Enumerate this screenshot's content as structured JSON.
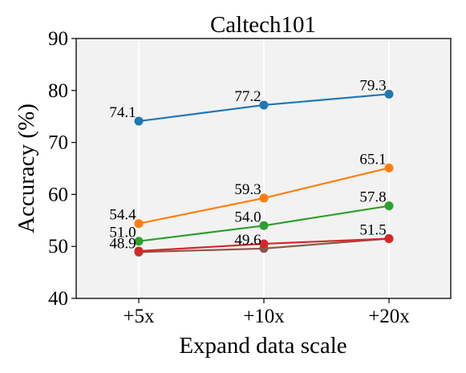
{
  "chart_data": {
    "type": "line",
    "title": "Caltech101",
    "xlabel": "Expand data scale",
    "ylabel": "Accuracy (%)",
    "categories": [
      "+5x",
      "+10x",
      "+20x"
    ],
    "ylim": [
      40,
      90
    ],
    "yticks": [
      40,
      50,
      60,
      70,
      80,
      90
    ],
    "grid": "vertical",
    "background": "#f2f2f2",
    "series": [
      {
        "color": "#1f77b4",
        "values": [
          74.1,
          77.2,
          79.3
        ],
        "labels": [
          "74.1",
          "77.2",
          "79.3"
        ]
      },
      {
        "color": "#ff7f0e",
        "values": [
          54.4,
          59.3,
          65.1
        ],
        "labels": [
          "54.4",
          "59.3",
          "65.1"
        ]
      },
      {
        "color": "#2ca02c",
        "values": [
          51.0,
          54.0,
          57.8
        ],
        "labels": [
          "51.0",
          "54.0",
          "57.8"
        ]
      },
      {
        "color": "#8c564b",
        "values": [
          48.9,
          49.6,
          51.5
        ],
        "labels": [
          "48.9",
          "49.6",
          "51.5"
        ]
      },
      {
        "color": "#d62728",
        "values": [
          49.1,
          50.5,
          51.5
        ],
        "labels": [
          "",
          "",
          ""
        ]
      }
    ]
  }
}
